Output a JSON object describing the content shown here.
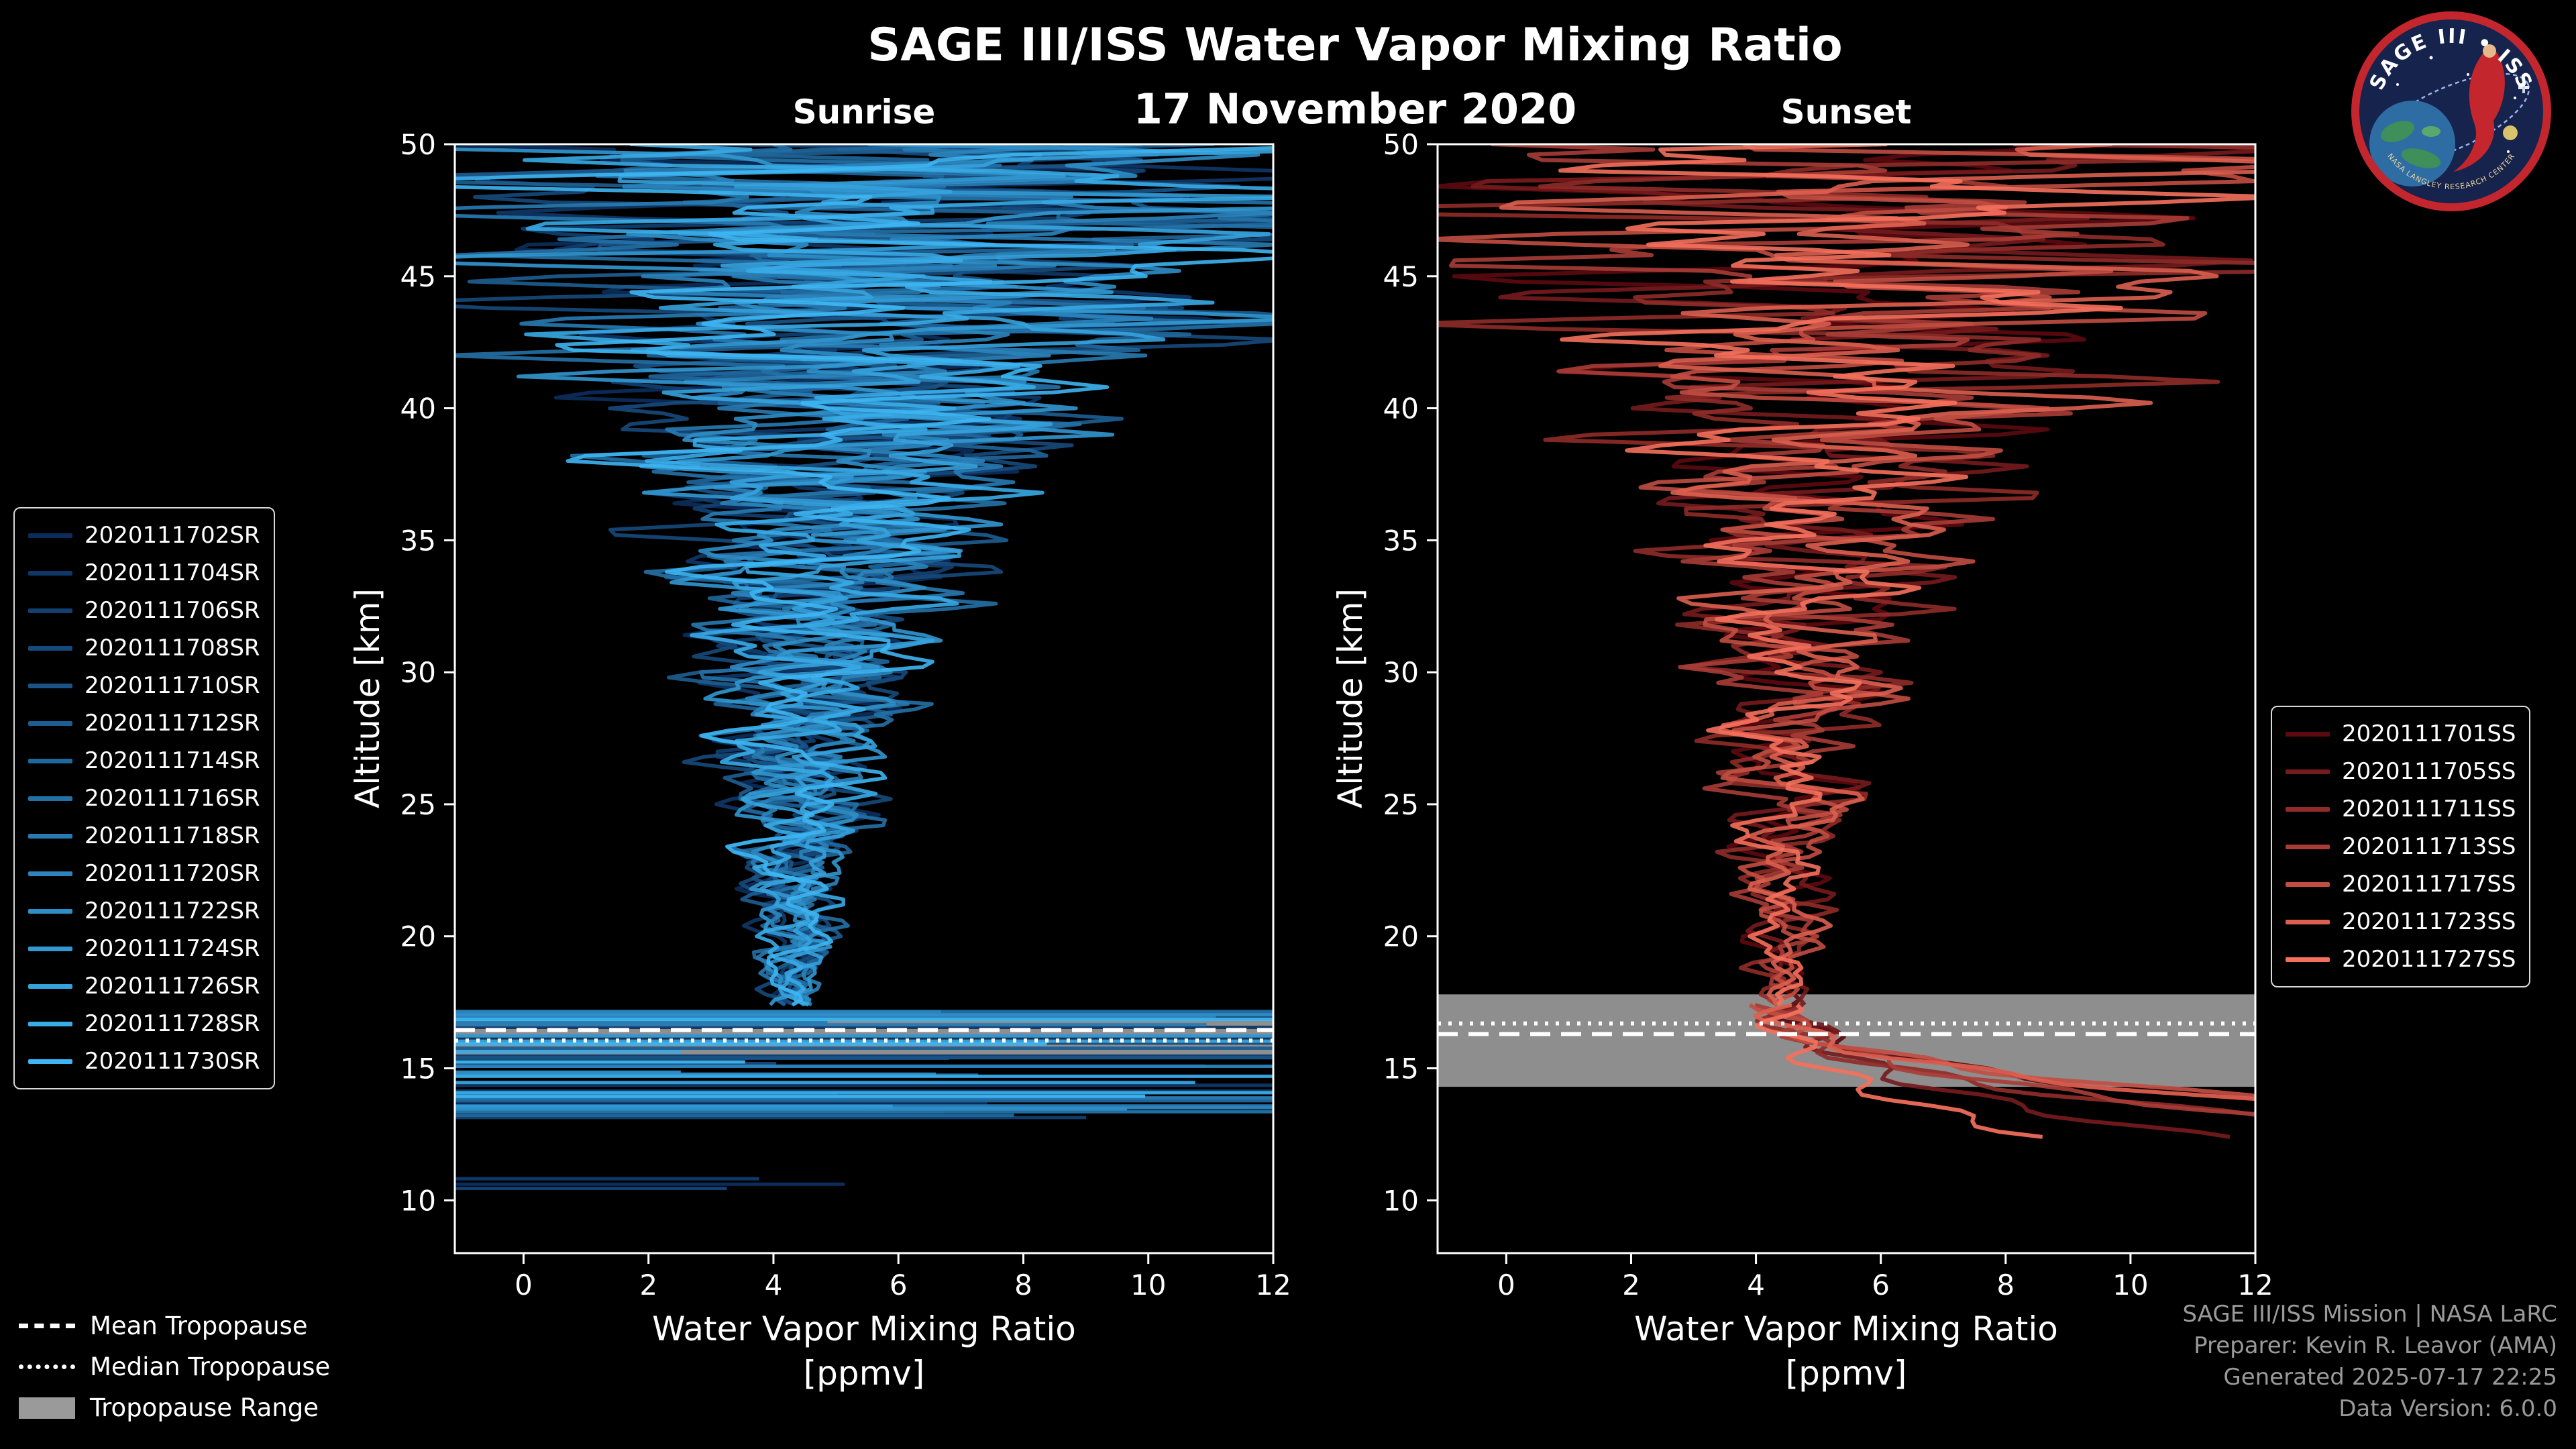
{
  "title": "SAGE III/ISS Water Vapor Mixing Ratio",
  "subtitle": "17 November 2020",
  "panels": [
    {
      "name": "Sunrise"
    },
    {
      "name": "Sunset"
    }
  ],
  "axes": {
    "ylabel": "Altitude [km]",
    "xlabel": "Water Vapor Mixing Ratio",
    "xunits": "[ppmv]",
    "xticks": [
      0,
      2,
      4,
      6,
      8,
      10,
      12
    ],
    "yticks": [
      10,
      15,
      20,
      25,
      30,
      35,
      40,
      45,
      50
    ]
  },
  "tropopause_legend": [
    {
      "label": "Mean Tropopause",
      "style": "dashed"
    },
    {
      "label": "Median Tropopause",
      "style": "dotted"
    },
    {
      "label": "Tropopause Range",
      "style": "band"
    }
  ],
  "footer": [
    "SAGE III/ISS Mission | NASA LaRC",
    "Preparer: Kevin R. Leavor (AMA)",
    "Generated 2025-07-17 22:25",
    "Data Version: 6.0.0"
  ],
  "logo": {
    "title": "SAGE III • ISS",
    "subtitle": "NASA LANGLEY RESEARCH CENTER"
  },
  "chart_data": {
    "type": "line",
    "title": "SAGE III/ISS Water Vapor Mixing Ratio",
    "xlabel": "Water Vapor Mixing Ratio [ppmv]",
    "ylabel": "Altitude [km]",
    "xlim": [
      -1.1,
      12
    ],
    "ylim": [
      8,
      50
    ],
    "grid": false,
    "band_color": "#9a9a9a",
    "altitudes": [
      17.5,
      19,
      21,
      23,
      25,
      27,
      29,
      31,
      33,
      35,
      37,
      39,
      41,
      43,
      45,
      47,
      50
    ],
    "panels": [
      {
        "name": "Sunrise",
        "legend_position": "left-of-axes",
        "series": [
          "2020111702SR",
          "2020111704SR",
          "2020111706SR",
          "2020111708SR",
          "2020111710SR",
          "2020111712SR",
          "2020111714SR",
          "2020111716SR",
          "2020111718SR",
          "2020111720SR",
          "2020111722SR",
          "2020111724SR",
          "2020111726SR",
          "2020111728SR",
          "2020111730SR"
        ],
        "color_dark": "#0b2d5c",
        "color_light": "#3db5f2",
        "mean_profile_ppmv": [
          4.4,
          4.3,
          4.35,
          4.4,
          4.45,
          4.5,
          4.6,
          4.7,
          4.8,
          4.9,
          5.1,
          5.3,
          5.5,
          5.7,
          5.9,
          6.1,
          6.4
        ],
        "spread_ppmv": [
          0.35,
          0.5,
          0.65,
          0.85,
          1.05,
          1.25,
          1.45,
          1.7,
          2.0,
          2.3,
          2.8,
          3.4,
          4.0,
          4.8,
          5.6,
          6.4,
          7.0
        ],
        "lower_region": "cloud-streaks",
        "tropopause": {
          "mean_km": 16.45,
          "median_km": 16.05,
          "range_km": [
            15.5,
            16.85
          ]
        }
      },
      {
        "name": "Sunset",
        "legend_position": "right-of-axes",
        "series": [
          "2020111701SS",
          "2020111705SS",
          "2020111711SS",
          "2020111713SS",
          "2020111717SS",
          "2020111723SS",
          "2020111727SS"
        ],
        "color_dark": "#5c0a10",
        "color_light": "#f5705c",
        "mean_profile_ppmv": [
          4.5,
          4.4,
          4.45,
          4.5,
          4.55,
          4.6,
          4.7,
          4.8,
          4.9,
          5.0,
          5.2,
          5.4,
          5.6,
          5.8,
          6.0,
          6.2,
          6.5
        ],
        "spread_ppmv": [
          0.35,
          0.5,
          0.65,
          0.85,
          1.05,
          1.25,
          1.45,
          1.7,
          2.0,
          2.3,
          2.8,
          3.4,
          4.0,
          4.8,
          5.6,
          6.4,
          7.0
        ],
        "lower_region": "descending-tails",
        "tropopause": {
          "mean_km": 16.3,
          "median_km": 16.7,
          "range_km": [
            14.3,
            17.8
          ]
        }
      }
    ]
  }
}
